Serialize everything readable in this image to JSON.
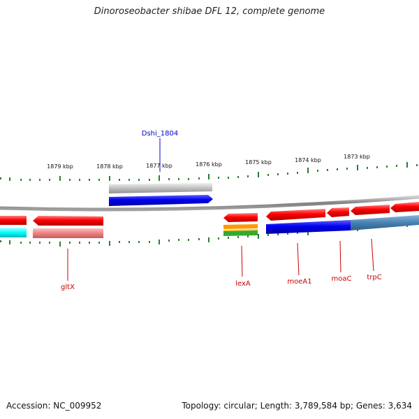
{
  "title": "Dinoroseobacter shibae DFL 12, complete genome",
  "accession": "Accession: NC_009952",
  "summary": "Topology: circular; Length: 3,789,584 bp; Genes: 3,634",
  "ticks": [
    "1879 kbp",
    "1878 kbp",
    "1877 kbp",
    "1876 kbp",
    "1875 kbp",
    "1874 kbp",
    "1873 kbp"
  ],
  "features": [
    {
      "label": "Dshi_1804",
      "color": "#0000cc"
    },
    {
      "label": "gltX",
      "color": "#cc0000"
    },
    {
      "label": "lexA",
      "color": "#cc0000"
    },
    {
      "label": "moeA1",
      "color": "#cc0000"
    },
    {
      "label": "moaC",
      "color": "#cc0000"
    },
    {
      "label": "trpC",
      "color": "#cc0000"
    }
  ],
  "colors": {
    "backbone": "#8a8a8a",
    "cds": "#ff0000",
    "cds_light": "#f08080",
    "gene_blue": "#0000ee",
    "steel": "#4682b4",
    "cyan": "#00ffff",
    "grey": "#c0c0c0",
    "orange": "#ff9900",
    "green": "#33aa33",
    "tick": "#2e7d32"
  }
}
